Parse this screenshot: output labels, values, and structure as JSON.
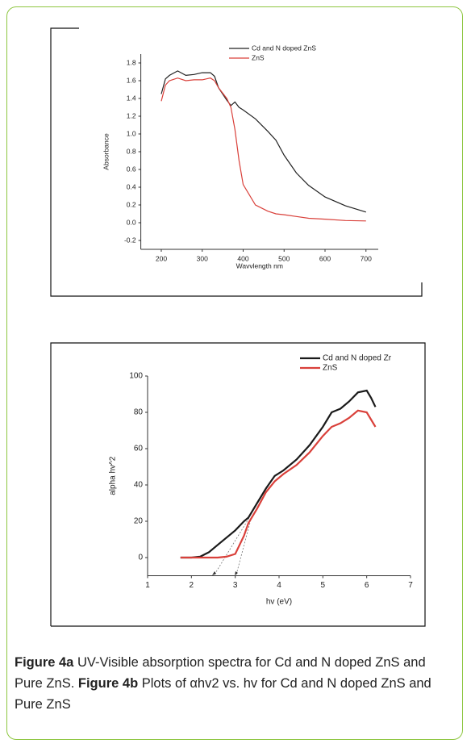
{
  "chart_data": [
    {
      "type": "line",
      "x_label": "Wavvlength nm",
      "y_label": "Absorbance",
      "x": [
        200,
        210,
        220,
        240,
        260,
        280,
        300,
        320,
        330,
        340,
        360,
        370,
        380,
        390,
        400,
        430,
        460,
        480,
        500,
        530,
        560,
        600,
        650,
        700
      ],
      "series": [
        {
          "name": "Cd and N doped ZnS",
          "color": "#222222",
          "values": [
            1.45,
            1.62,
            1.66,
            1.71,
            1.66,
            1.67,
            1.69,
            1.69,
            1.65,
            1.52,
            1.38,
            1.32,
            1.36,
            1.3,
            1.27,
            1.17,
            1.03,
            0.93,
            0.76,
            0.56,
            0.42,
            0.29,
            0.19,
            0.12
          ]
        },
        {
          "name": "ZnS",
          "color": "#d9403a",
          "values": [
            1.37,
            1.55,
            1.6,
            1.63,
            1.6,
            1.61,
            1.61,
            1.63,
            1.6,
            1.52,
            1.4,
            1.3,
            1.05,
            0.7,
            0.43,
            0.2,
            0.13,
            0.1,
            0.09,
            0.07,
            0.05,
            0.04,
            0.025,
            0.02
          ]
        }
      ],
      "xlim": [
        150,
        730
      ],
      "xticks": [
        200,
        300,
        400,
        500,
        600,
        700
      ],
      "ylim": [
        -0.3,
        1.9
      ],
      "yticks": [
        -0.2,
        {
          "value": 0,
          "label": "0.0"
        },
        0.2,
        0.4,
        0.6,
        0.8,
        {
          "value": 1,
          "label": "1.0"
        },
        1.2,
        1.4,
        1.6,
        1.8
      ],
      "grid": false,
      "legend": "top-right"
    },
    {
      "type": "line",
      "x_label": "hv (eV)",
      "y_label": "alpha hv^2",
      "x": [
        1.75,
        2.0,
        2.2,
        2.4,
        2.6,
        2.8,
        3.0,
        3.2,
        3.3,
        3.5,
        3.7,
        3.9,
        4.1,
        4.4,
        4.7,
        5.0,
        5.2,
        5.4,
        5.6,
        5.8,
        6.0,
        6.1,
        6.2
      ],
      "series": [
        {
          "name": "Cd and N doped Zr",
          "color": "#1a1a1a",
          "values": [
            0,
            0,
            0.5,
            3,
            7,
            11,
            15,
            20,
            22,
            30,
            38,
            45,
            48,
            54,
            62,
            72,
            80,
            82,
            86,
            91,
            92,
            88,
            83
          ]
        },
        {
          "name": "ZnS",
          "color": "#d9403a",
          "values": [
            0,
            0,
            0,
            0,
            0,
            0.5,
            2,
            12,
            19,
            27,
            36,
            42,
            46,
            51,
            58,
            67,
            72,
            74,
            77,
            81,
            80,
            76,
            72
          ]
        }
      ],
      "xlim": [
        1,
        7
      ],
      "xticks": [
        1,
        2,
        3,
        4,
        5,
        6,
        7
      ],
      "ylim": [
        -10,
        100
      ],
      "yticks": [
        0,
        20,
        40,
        60,
        80,
        100
      ],
      "grid": false,
      "legend": "top-right"
    }
  ],
  "caption": {
    "label_a": "Figure 4a",
    "text_a": "UV-Visible absorption spectra for Cd and N doped ZnS and Pure ZnS.",
    "label_b": "Figure 4b",
    "text_b": "Plots of αhv2 vs. hv for Cd and N doped ZnS and Pure ZnS"
  }
}
